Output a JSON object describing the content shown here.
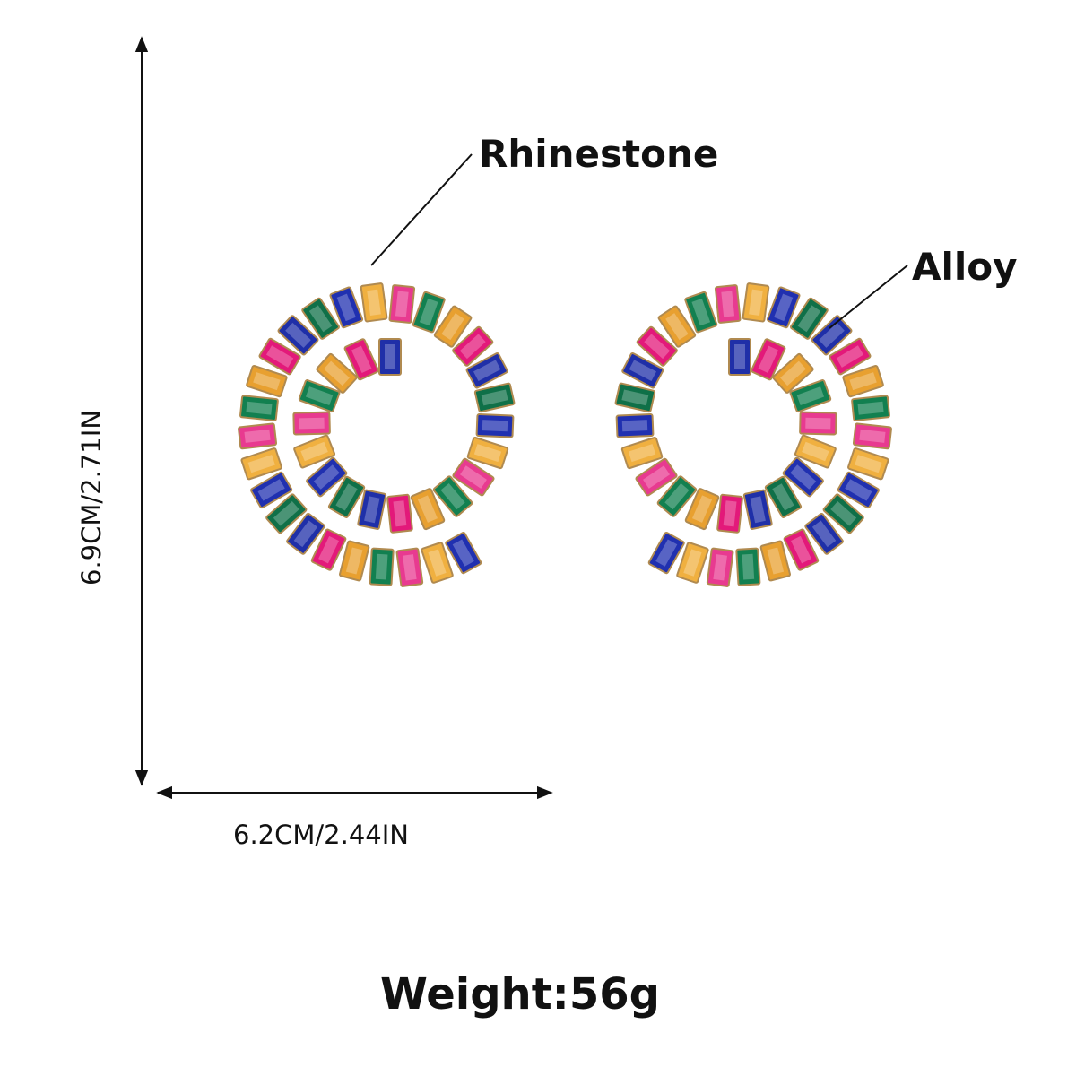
{
  "labels": {
    "rhinestone": "Rhinestone",
    "alloy": "Alloy"
  },
  "dimensions": {
    "height": "6.9CM/2.71IN",
    "width": "6.2CM/2.44IN"
  },
  "weight": "Weight:56g"
}
